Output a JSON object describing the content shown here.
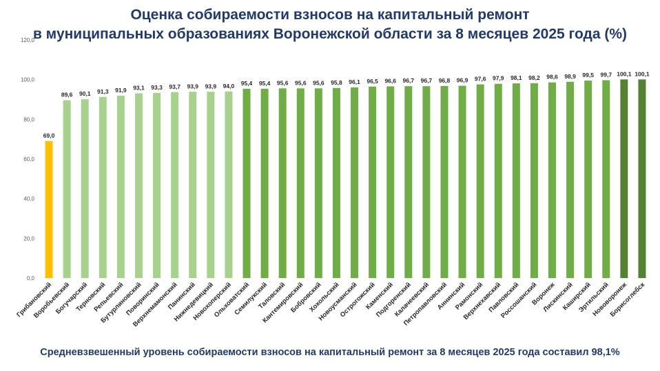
{
  "title": {
    "line1": "Оценка собираемости взносов на капитальный ремонт",
    "line2": "в муниципальных образованиях Воронежской области за 8 месяцев 2025 года (%)"
  },
  "footer": "Средневзвешенный уровень собираемости взносов на капитальный ремонт за 8 месяцев 2025 года составил 98,1%",
  "colors": {
    "low": "#ffc000",
    "light_green": "#a9d18e",
    "mid_green": "#70ad47",
    "dark_green": "#548235"
  },
  "chart_data": {
    "type": "bar",
    "ylim": [
      0,
      120
    ],
    "yticks": [
      "0,0",
      "20,0",
      "40,0",
      "60,0",
      "80,0",
      "100,0",
      "120,0"
    ],
    "grid": false,
    "legend": "none",
    "categories": [
      "Грибановский",
      "Воробьевский",
      "Богучарский",
      "Терновский",
      "Репьевский",
      "Бутурлиновский",
      "Поворинский",
      "Верхнемамонский",
      "Панинский",
      "Нижнедевицкий",
      "Новохоперский",
      "Ольховатский",
      "Семилукский",
      "Таловский",
      "Кантемировский",
      "Бобровский",
      "Хохольский",
      "Новоусманский",
      "Острогожский",
      "Каменский",
      "Подгоренский",
      "Калачеевский",
      "Петропавловский",
      "Аннинский",
      "Рамонский",
      "Верхнехавский",
      "Павловский",
      "Россошанский",
      "Воронеж",
      "Лискинский",
      "Каширский",
      "Эртильский",
      "Нововоронеж",
      "Борисоглебск"
    ],
    "values": [
      69.0,
      89.6,
      90.1,
      91.3,
      91.9,
      93.1,
      93.3,
      93.7,
      93.9,
      93.9,
      94.0,
      95.4,
      95.4,
      95.6,
      95.6,
      95.6,
      95.8,
      96.1,
      96.5,
      96.6,
      96.7,
      96.7,
      96.8,
      96.9,
      97.6,
      97.9,
      98.1,
      98.2,
      98.6,
      98.9,
      99.5,
      99.7,
      100.1,
      100.1
    ],
    "labels": [
      "69,0",
      "89,6",
      "90,1",
      "91,3",
      "91,9",
      "93,1",
      "93,3",
      "93,7",
      "93,9",
      "93,9",
      "94,0",
      "95,4",
      "95,4",
      "95,6",
      "95,6",
      "95,6",
      "95,8",
      "96,1",
      "96,5",
      "96,6",
      "96,7",
      "96,7",
      "96,8",
      "96,9",
      "97,6",
      "97,9",
      "98,1",
      "98,2",
      "98,6",
      "98,9",
      "99,5",
      "99,7",
      "100,1",
      "100,1"
    ],
    "color_groups": [
      "low",
      "light_green",
      "light_green",
      "light_green",
      "light_green",
      "light_green",
      "light_green",
      "light_green",
      "light_green",
      "light_green",
      "light_green",
      "mid_green",
      "mid_green",
      "mid_green",
      "mid_green",
      "mid_green",
      "mid_green",
      "mid_green",
      "mid_green",
      "mid_green",
      "mid_green",
      "mid_green",
      "mid_green",
      "mid_green",
      "mid_green",
      "mid_green",
      "mid_green",
      "mid_green",
      "mid_green",
      "mid_green",
      "mid_green",
      "mid_green",
      "dark_green",
      "dark_green"
    ]
  }
}
